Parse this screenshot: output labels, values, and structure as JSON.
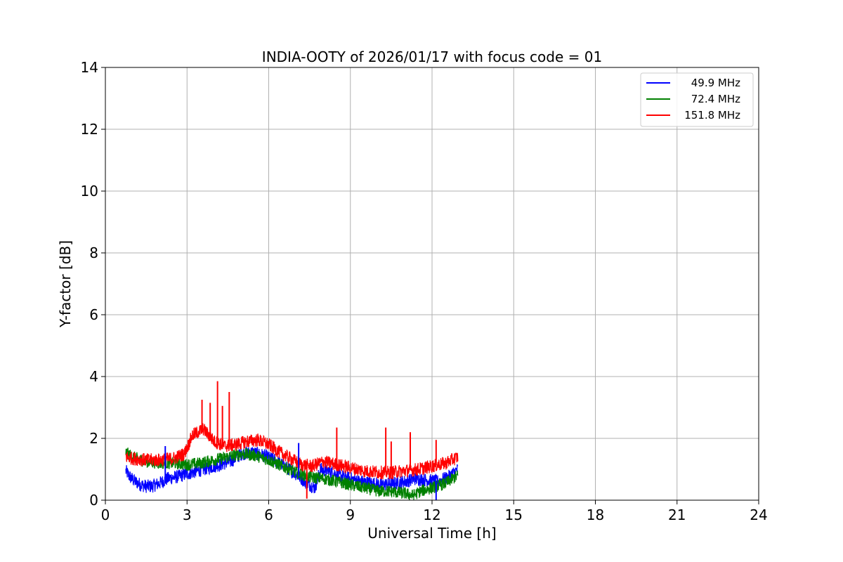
{
  "chart_data": {
    "type": "line",
    "title": "INDIA-OOTY of 2026/01/17 with focus code = 01",
    "xlabel": "Universal Time [h]",
    "ylabel": "Y-factor [dB]",
    "xlim": [
      0,
      24
    ],
    "ylim": [
      0,
      14
    ],
    "xticks": [
      "0",
      "3",
      "6",
      "9",
      "12",
      "15",
      "18",
      "21",
      "24"
    ],
    "yticks": [
      "0",
      "2",
      "4",
      "6",
      "8",
      "10",
      "12",
      "14"
    ],
    "grid": true,
    "legend_position": "top-right",
    "series": [
      {
        "name": "49.9 MHz",
        "color": "#0000ff",
        "x": [
          0.75,
          0.9,
          1.1,
          1.3,
          1.5,
          1.7,
          2.0,
          2.3,
          2.6,
          3.0,
          3.4,
          3.8,
          4.2,
          4.6,
          5.0,
          5.4,
          5.8,
          6.2,
          6.6,
          7.0,
          7.4,
          7.7,
          7.9,
          8.2,
          8.6,
          9.0,
          9.4,
          9.8,
          10.2,
          10.6,
          11.0,
          11.4,
          11.8,
          12.2,
          12.6,
          12.95
        ],
        "y": [
          0.95,
          0.75,
          0.6,
          0.5,
          0.45,
          0.45,
          0.55,
          0.7,
          0.75,
          0.85,
          0.95,
          1.05,
          1.15,
          1.25,
          1.5,
          1.55,
          1.45,
          1.3,
          1.1,
          0.85,
          0.55,
          0.4,
          1.0,
          0.95,
          0.8,
          0.7,
          0.6,
          0.55,
          0.5,
          0.55,
          0.6,
          0.7,
          0.65,
          0.6,
          0.75,
          1.0
        ],
        "band": 0.22
      },
      {
        "name": "72.4 MHz",
        "color": "#008000",
        "x": [
          0.75,
          1.0,
          1.5,
          2.0,
          2.5,
          3.0,
          3.5,
          4.0,
          4.5,
          5.0,
          5.5,
          6.0,
          6.5,
          7.0,
          7.5,
          8.0,
          8.5,
          9.0,
          9.5,
          10.0,
          10.5,
          11.0,
          11.3,
          11.6,
          12.0,
          12.5,
          12.95
        ],
        "y": [
          1.55,
          1.4,
          1.25,
          1.2,
          1.2,
          1.15,
          1.2,
          1.3,
          1.4,
          1.5,
          1.45,
          1.3,
          1.1,
          0.9,
          0.75,
          0.7,
          0.6,
          0.5,
          0.4,
          0.3,
          0.28,
          0.22,
          0.15,
          0.3,
          0.4,
          0.55,
          0.8
        ],
        "band": 0.2
      },
      {
        "name": "151.8 MHz",
        "color": "#ff0000",
        "x": [
          0.75,
          1.0,
          1.5,
          2.0,
          2.5,
          2.9,
          3.2,
          3.6,
          4.0,
          4.4,
          4.8,
          5.2,
          5.6,
          6.0,
          6.4,
          6.8,
          7.2,
          7.6,
          8.0,
          8.5,
          9.0,
          9.5,
          10.0,
          10.5,
          11.0,
          11.5,
          12.0,
          12.5,
          12.95
        ],
        "y": [
          1.4,
          1.35,
          1.3,
          1.3,
          1.35,
          1.5,
          2.1,
          2.3,
          1.9,
          1.75,
          1.8,
          1.9,
          1.95,
          1.8,
          1.55,
          1.35,
          1.15,
          1.1,
          1.25,
          1.15,
          1.05,
          0.95,
          0.9,
          0.9,
          0.95,
          1.0,
          1.1,
          1.2,
          1.4
        ],
        "band": 0.22
      }
    ],
    "spikes": [
      {
        "series": 2,
        "x": 4.12,
        "y": 3.85
      },
      {
        "series": 2,
        "x": 4.55,
        "y": 3.5
      },
      {
        "series": 2,
        "x": 3.55,
        "y": 3.25
      },
      {
        "series": 2,
        "x": 3.85,
        "y": 3.15
      },
      {
        "series": 2,
        "x": 4.3,
        "y": 3.05
      },
      {
        "series": 2,
        "x": 8.5,
        "y": 2.35
      },
      {
        "series": 2,
        "x": 10.3,
        "y": 2.35
      },
      {
        "series": 2,
        "x": 11.2,
        "y": 2.2
      },
      {
        "series": 2,
        "x": 10.5,
        "y": 1.9
      },
      {
        "series": 2,
        "x": 12.15,
        "y": 1.95
      },
      {
        "series": 2,
        "x": 7.4,
        "y": 0.05
      },
      {
        "series": 0,
        "x": 2.2,
        "y": 1.75
      },
      {
        "series": 0,
        "x": 7.1,
        "y": 1.85
      },
      {
        "series": 0,
        "x": 12.15,
        "y": 0.0
      }
    ]
  }
}
